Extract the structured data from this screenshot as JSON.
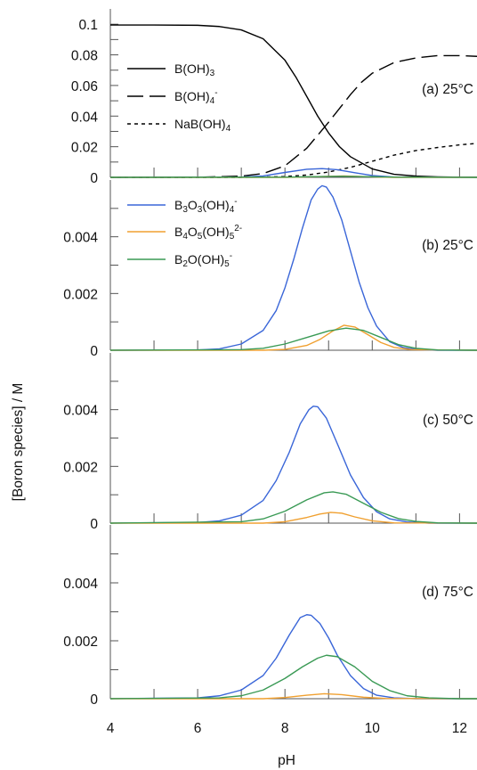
{
  "figure": {
    "ylabel": "[Boron species] / M",
    "xlabel": "pH",
    "x_ticks": [
      "4",
      "6",
      "8",
      "10",
      "12"
    ],
    "xlim": [
      4,
      12.4
    ]
  },
  "chart_data": [
    {
      "type": "line",
      "panel_label": "(a) 25°C",
      "ylim": [
        0,
        0.11
      ],
      "y_ticks": [
        "0",
        "0.02",
        "0.04",
        "0.06",
        "0.08",
        "0.1"
      ],
      "y_tick_values": [
        0,
        0.02,
        0.04,
        0.06,
        0.08,
        0.1
      ],
      "legend_placement": "left",
      "series": [
        {
          "name": "B(OH)3",
          "legend_main": "B(OH)",
          "legend_sub": "3",
          "legend_sup": "",
          "color": "#000000",
          "dash": "solid",
          "x": [
            4,
            5,
            6,
            6.5,
            7,
            7.5,
            8,
            8.25,
            8.5,
            8.75,
            9,
            9.25,
            9.5,
            10,
            10.5,
            11,
            11.5,
            12,
            12.4
          ],
          "y": [
            0.0995,
            0.0995,
            0.0993,
            0.0985,
            0.0963,
            0.0905,
            0.0765,
            0.0655,
            0.0528,
            0.04,
            0.029,
            0.02,
            0.0135,
            0.0055,
            0.002,
            0.0008,
            0.0003,
            0.0001,
            0.0001
          ]
        },
        {
          "name": "B(OH)4-",
          "legend_main": "B(OH)",
          "legend_sub": "4",
          "legend_sup": "-",
          "color": "#000000",
          "dash": "long",
          "x": [
            4,
            6,
            7,
            7.5,
            8,
            8.5,
            9,
            9.25,
            9.5,
            9.75,
            10,
            10.5,
            11,
            11.5,
            12,
            12.4
          ],
          "y": [
            0,
            0.0001,
            0.0008,
            0.0025,
            0.0075,
            0.019,
            0.036,
            0.045,
            0.054,
            0.062,
            0.068,
            0.075,
            0.078,
            0.0795,
            0.0795,
            0.079
          ]
        },
        {
          "name": "NaB(OH)4",
          "legend_main": "NaB(OH)",
          "legend_sub": "4",
          "legend_sup": "",
          "color": "#000000",
          "dash": "short",
          "x": [
            4,
            7,
            8,
            8.5,
            9,
            9.5,
            10,
            10.5,
            11,
            11.5,
            12,
            12.4
          ],
          "y": [
            0,
            0,
            0.0005,
            0.0015,
            0.0035,
            0.0065,
            0.0105,
            0.0145,
            0.0175,
            0.0195,
            0.0212,
            0.0222
          ]
        },
        {
          "name": "B3O3(OH)4-",
          "legend_main": "",
          "legend_sub": "",
          "legend_sup": "",
          "color": "#3a66d8",
          "dash": "solid",
          "x": [
            4,
            7,
            7.5,
            8,
            8.5,
            8.85,
            9.2,
            9.6,
            10,
            10.5,
            12.4
          ],
          "y": [
            0,
            0.0002,
            0.0009,
            0.0032,
            0.0053,
            0.0057,
            0.005,
            0.003,
            0.0012,
            0.0002,
            0
          ]
        },
        {
          "name": "B4O5(OH)5 2-",
          "legend_main": "",
          "legend_sub": "",
          "legend_sup": "",
          "color": "#f0a030",
          "dash": "solid",
          "x": [
            4,
            8,
            8.7,
            9.35,
            10,
            10.5,
            12.4
          ],
          "y": [
            0,
            0,
            0.0004,
            0.0009,
            0.0003,
            0,
            0
          ]
        },
        {
          "name": "B2O(OH)5-",
          "legend_main": "",
          "legend_sub": "",
          "legend_sup": "",
          "color": "#3a9a55",
          "dash": "solid",
          "x": [
            4,
            8,
            8.7,
            9.3,
            10,
            10.6,
            12.4
          ],
          "y": [
            0,
            0.0001,
            0.0005,
            0.0007,
            0.0004,
            0.0001,
            0
          ]
        }
      ]
    },
    {
      "type": "line",
      "panel_label": "(b) 25°C",
      "ylim": [
        0,
        0.006
      ],
      "y_ticks": [
        "0",
        "0.002",
        "0.004"
      ],
      "y_tick_values": [
        0,
        0.002,
        0.004
      ],
      "minor_y_ticks": [
        0.001,
        0.003,
        0.005
      ],
      "legend_placement": "top-left",
      "series": [
        {
          "name": "B3O3(OH)4-",
          "legend_main": "B",
          "legend_parts": [
            [
              "B",
              ""
            ],
            [
              "3",
              "sub"
            ],
            [
              "O",
              ""
            ],
            [
              "3",
              "sub"
            ],
            [
              "(OH)",
              ""
            ],
            [
              "4",
              "sub"
            ],
            [
              "-",
              "sup"
            ]
          ],
          "color": "#3a66d8",
          "dash": "solid",
          "x": [
            4,
            6,
            6.5,
            7,
            7.5,
            7.8,
            8,
            8.2,
            8.4,
            8.6,
            8.75,
            8.85,
            8.95,
            9.1,
            9.3,
            9.5,
            9.7,
            9.9,
            10.1,
            10.4,
            10.7,
            11,
            11.5,
            12.4
          ],
          "y": [
            0,
            1e-05,
            5e-05,
            0.00022,
            0.0007,
            0.0014,
            0.0022,
            0.0032,
            0.0043,
            0.0053,
            0.00568,
            0.0058,
            0.00575,
            0.0054,
            0.0046,
            0.0035,
            0.0024,
            0.0015,
            0.00085,
            0.0003,
            0.0001,
            3e-05,
            0,
            0
          ]
        },
        {
          "name": "B4O5(OH)5 2-",
          "legend_parts": [
            [
              "B",
              ""
            ],
            [
              "4",
              "sub"
            ],
            [
              "O",
              ""
            ],
            [
              "5",
              "sub"
            ],
            [
              "(OH)",
              ""
            ],
            [
              "5",
              "sub"
            ],
            [
              "2-",
              "sup"
            ]
          ],
          "color": "#f0a030",
          "dash": "solid",
          "x": [
            4,
            7.5,
            8,
            8.5,
            8.8,
            9.1,
            9.35,
            9.6,
            9.9,
            10.2,
            10.5,
            10.9,
            12.4
          ],
          "y": [
            0,
            0,
            3e-05,
            0.00017,
            0.00038,
            0.00068,
            0.00088,
            0.00082,
            0.00055,
            0.00027,
            0.0001,
            2e-05,
            0
          ]
        },
        {
          "name": "B2O(OH)5-",
          "legend_parts": [
            [
              "B",
              ""
            ],
            [
              "2",
              "sub"
            ],
            [
              "O(OH)",
              ""
            ],
            [
              "5",
              "sub"
            ],
            [
              "-",
              "sup"
            ]
          ],
          "color": "#3a9a55",
          "dash": "solid",
          "x": [
            4,
            7,
            7.5,
            8,
            8.5,
            9,
            9.4,
            9.8,
            10.2,
            10.6,
            11,
            11.5,
            12.4
          ],
          "y": [
            0,
            2e-05,
            7e-05,
            0.00022,
            0.00045,
            0.00068,
            0.00078,
            0.0007,
            0.00045,
            0.0002,
            7e-05,
            1e-05,
            0
          ]
        }
      ]
    },
    {
      "type": "line",
      "panel_label": "(c) 50°C",
      "ylim": [
        0,
        0.006
      ],
      "y_ticks": [
        "0",
        "0.002",
        "0.004"
      ],
      "y_tick_values": [
        0,
        0.002,
        0.004
      ],
      "minor_y_ticks": [
        0.001,
        0.003,
        0.005
      ],
      "series": [
        {
          "name": "B3O3(OH)4-",
          "color": "#3a66d8",
          "dash": "solid",
          "x": [
            4,
            6,
            6.5,
            7,
            7.5,
            7.8,
            8.1,
            8.35,
            8.55,
            8.65,
            8.75,
            8.95,
            9.2,
            9.5,
            9.8,
            10.1,
            10.4,
            10.8,
            11.3,
            12.4
          ],
          "y": [
            0,
            2e-05,
            8e-05,
            0.00028,
            0.0008,
            0.0015,
            0.0025,
            0.0035,
            0.004,
            0.00412,
            0.0041,
            0.0037,
            0.0028,
            0.0017,
            0.0009,
            0.0004,
            0.00015,
            4e-05,
            0,
            0
          ]
        },
        {
          "name": "B4O5(OH)5 2-",
          "color": "#f0a030",
          "dash": "solid",
          "x": [
            4,
            7.5,
            8,
            8.5,
            8.8,
            9.05,
            9.3,
            9.6,
            10,
            10.5,
            12.4
          ],
          "y": [
            0,
            0,
            5e-05,
            0.0002,
            0.00032,
            0.00038,
            0.00035,
            0.00022,
            8e-05,
            1e-05,
            0
          ]
        },
        {
          "name": "B2O(OH)5-",
          "color": "#3a9a55",
          "dash": "solid",
          "x": [
            4,
            7,
            7.5,
            8,
            8.5,
            8.9,
            9.1,
            9.4,
            9.8,
            10.2,
            10.6,
            11,
            11.5,
            12.4
          ],
          "y": [
            0,
            5e-05,
            0.00015,
            0.00042,
            0.00082,
            0.00107,
            0.0011,
            0.00102,
            0.0007,
            0.00038,
            0.00016,
            6e-05,
            1e-05,
            0
          ]
        }
      ]
    },
    {
      "type": "line",
      "panel_label": "(d) 75°C",
      "ylim": [
        0,
        0.006
      ],
      "y_ticks": [
        "0",
        "0.002",
        "0.004"
      ],
      "y_tick_values": [
        0,
        0.002,
        0.004
      ],
      "minor_y_ticks": [
        0.001,
        0.003,
        0.005
      ],
      "series": [
        {
          "name": "B3O3(OH)4-",
          "color": "#3a66d8",
          "dash": "solid",
          "x": [
            4,
            6,
            6.5,
            7,
            7.5,
            7.8,
            8.1,
            8.35,
            8.5,
            8.6,
            8.8,
            9.0,
            9.2,
            9.5,
            9.8,
            10.1,
            10.5,
            11,
            12.4
          ],
          "y": [
            0,
            3e-05,
            0.0001,
            0.0003,
            0.0008,
            0.0014,
            0.0022,
            0.0028,
            0.0029,
            0.00288,
            0.0026,
            0.0021,
            0.0015,
            0.0008,
            0.00035,
            0.00012,
            3e-05,
            0,
            0
          ]
        },
        {
          "name": "B4O5(OH)5 2-",
          "color": "#f0a030",
          "dash": "solid",
          "x": [
            4,
            7.5,
            8,
            8.5,
            8.9,
            9.3,
            9.8,
            10.3,
            12.4
          ],
          "y": [
            0,
            0,
            4e-05,
            0.00012,
            0.00017,
            0.00014,
            5e-05,
            1e-05,
            0
          ]
        },
        {
          "name": "B2O(OH)5-",
          "color": "#3a9a55",
          "dash": "solid",
          "x": [
            4,
            6.5,
            7,
            7.5,
            8,
            8.4,
            8.75,
            8.95,
            9.2,
            9.6,
            10,
            10.4,
            10.8,
            11.3,
            12,
            12.4
          ],
          "y": [
            0,
            3e-05,
            0.0001,
            0.0003,
            0.0007,
            0.0011,
            0.0014,
            0.0015,
            0.00145,
            0.0011,
            0.0006,
            0.00028,
            0.0001,
            3e-05,
            0,
            0
          ]
        }
      ]
    }
  ]
}
